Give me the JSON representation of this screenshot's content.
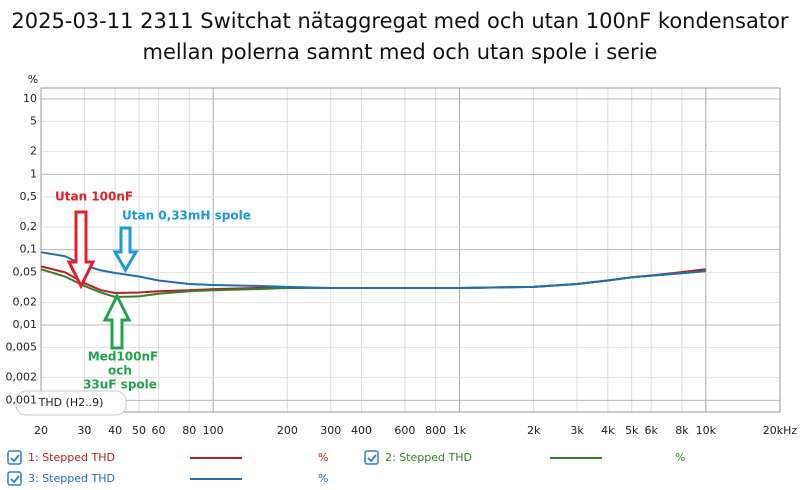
{
  "chart_data": {
    "type": "line",
    "title": [
      "2025-03-11 2311 Switchat nätaggregat med och utan 100nF kondensator",
      "mellan polerna samnt med och utan spole i serie"
    ],
    "y_label": "%",
    "measurement_label": "THD (H2..9)",
    "log_x": true,
    "log_y": true,
    "grid": true,
    "xlim": [
      20,
      20000
    ],
    "ylim": [
      0.0007,
      14
    ],
    "xticks": [
      20,
      30,
      40,
      50,
      60,
      80,
      100,
      200,
      300,
      400,
      600,
      800,
      {
        "value": 1000,
        "label": "1k"
      },
      {
        "value": 2000,
        "label": "2k"
      },
      {
        "value": 3000,
        "label": "3k"
      },
      {
        "value": 4000,
        "label": "4k"
      },
      {
        "value": 5000,
        "label": "5k"
      },
      {
        "value": 6000,
        "label": "6k"
      },
      {
        "value": 8000,
        "label": "8k"
      },
      {
        "value": 10000,
        "label": "10k"
      },
      {
        "value": 20000,
        "label": "20kHz"
      }
    ],
    "yticks": [
      10,
      5,
      2,
      1,
      {
        "value": 0.5,
        "label": "0,5"
      },
      {
        "value": 0.2,
        "label": "0,2"
      },
      {
        "value": 0.1,
        "label": "0,1"
      },
      {
        "value": 0.05,
        "label": "0,05"
      },
      {
        "value": 0.02,
        "label": "0,02"
      },
      {
        "value": 0.01,
        "label": "0,01"
      },
      {
        "value": 0.005,
        "label": "0,005"
      },
      {
        "value": 0.002,
        "label": "0,002"
      },
      {
        "value": 0.001,
        "label": "0,001"
      }
    ],
    "x": [
      20,
      25,
      30,
      35,
      40,
      50,
      60,
      80,
      100,
      150,
      200,
      300,
      500,
      1000,
      2000,
      3000,
      4000,
      5000,
      7000,
      10000
    ],
    "series": [
      {
        "name": "1: Stepped THD",
        "unit": "%",
        "color": "#b22222",
        "values": [
          0.06,
          0.05,
          0.036,
          0.029,
          0.0266,
          0.027,
          0.028,
          0.029,
          0.03,
          0.031,
          0.031,
          0.031,
          0.031,
          0.031,
          0.032,
          0.035,
          0.039,
          0.043,
          0.048,
          0.055
        ]
      },
      {
        "name": "2: Stepped THD",
        "unit": "%",
        "color": "#3a7d2a",
        "values": [
          0.055,
          0.044,
          0.033,
          0.027,
          0.0235,
          0.024,
          0.026,
          0.028,
          0.029,
          0.03,
          0.031,
          0.031,
          0.031,
          0.031,
          0.032,
          0.035,
          0.039,
          0.043,
          0.047,
          0.052
        ]
      },
      {
        "name": "3: Stepped THD",
        "unit": "%",
        "color": "#1f6fb5",
        "values": [
          0.0926,
          0.082,
          0.062,
          0.053,
          0.049,
          0.044,
          0.039,
          0.035,
          0.034,
          0.033,
          0.032,
          0.031,
          0.031,
          0.031,
          0.032,
          0.035,
          0.039,
          0.043,
          0.047,
          0.052
        ]
      }
    ],
    "annotations": [
      {
        "lines": [
          "Utan 100nF"
        ],
        "color": "#e0202a"
      },
      {
        "lines": [
          "Utan 0,33mH spole"
        ],
        "color": "#1a9ad6"
      },
      {
        "lines": [
          "Med100nF",
          "och",
          "33uF spole"
        ],
        "color": "#22a24a"
      }
    ]
  }
}
